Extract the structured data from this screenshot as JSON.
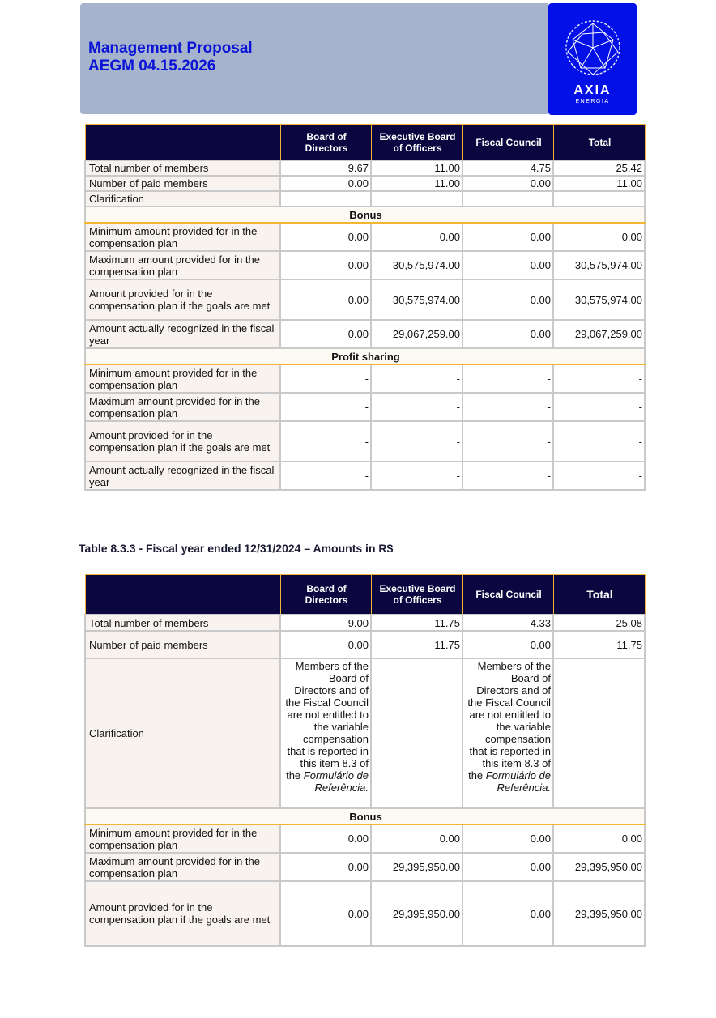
{
  "header": {
    "title": [
      "Management Proposal",
      "AEGM 04.15.2026"
    ],
    "logo": {
      "name": "AXIA",
      "subtitle": "ENERGIA"
    }
  },
  "tables": [
    {
      "columns": [
        "Board of Directors",
        "Executive Board of Officers",
        "Fiscal Council",
        "Total"
      ],
      "rows": [
        {
          "label": "Total number of members",
          "cells": [
            "9.67",
            "11.00",
            "4.75",
            "25.42"
          ]
        },
        {
          "label": "Number of paid members",
          "cells": [
            "0.00",
            "11.00",
            "0.00",
            "11.00"
          ]
        },
        {
          "label": "Clarification",
          "cells": [
            null,
            null,
            null,
            null
          ]
        },
        {
          "section": "Bonus"
        },
        {
          "label": "Minimum amount provided for in the compensation plan",
          "cells": [
            "0.00",
            "0.00",
            "0.00",
            "0.00"
          ]
        },
        {
          "label": "Maximum amount provided for in the compensation plan",
          "cells": [
            "0.00",
            "30,575,974.00",
            "0.00",
            "30,575,974.00"
          ]
        },
        {
          "label": "Amount provided for in the compensation plan if the goals are met",
          "cells": [
            "0.00",
            "30,575,974.00",
            "0.00",
            "30,575,974.00"
          ]
        },
        {
          "label": "Amount actually recognized in the fiscal year",
          "cells": [
            "0.00",
            "29,067,259.00",
            "0.00",
            "29,067,259.00"
          ]
        },
        {
          "section": "Profit sharing"
        },
        {
          "label": "Minimum amount provided for in the compensation plan",
          "cells": [
            "-",
            "-",
            "-",
            "-"
          ]
        },
        {
          "label": "Maximum amount provided for in the compensation plan",
          "cells": [
            "-",
            "-",
            "-",
            "-"
          ]
        },
        {
          "label": "Amount provided for in the compensation plan if the goals are met",
          "cells": [
            "-",
            "-",
            "-",
            "-"
          ]
        },
        {
          "label": "Amount actually recognized in the fiscal year",
          "cells": [
            "-",
            "-",
            "-",
            "-"
          ]
        }
      ]
    },
    {
      "caption": "Table 8.3.3 - Fiscal year ended 12/31/2024 – Amounts in R$",
      "columns": [
        "Board of Directors",
        "Executive Board of Officers",
        "Fiscal Council",
        "Total"
      ],
      "rows": [
        {
          "label": "Total number of members",
          "cells": [
            "9.00",
            "11.75",
            "4.33",
            "25.08"
          ]
        },
        {
          "label": "Number of paid members",
          "cells": [
            "0.00",
            "11.75",
            "0.00",
            "11.75"
          ]
        },
        {
          "label": "Clarification",
          "cells": [
            {
              "text": "Members of the Board of Directors and of the Fiscal Council are not entitled to the variable compensation that is reported in this item 8.3 of the",
              "emphasis": "Formulário de Referência."
            },
            null,
            {
              "text": "Members of the Board of Directors and of the Fiscal Council are not entitled to the variable compensation that is reported in this item 8.3 of the",
              "emphasis": "Formulário de Referência."
            },
            null
          ]
        },
        {
          "section": "Bonus"
        },
        {
          "label": "Minimum amount provided for in the compensation plan",
          "cells": [
            "0.00",
            "0.00",
            "0.00",
            "0.00"
          ]
        },
        {
          "label": "Maximum amount provided for in the compensation plan",
          "cells": [
            "0.00",
            "29,395,950.00",
            "0.00",
            "29,395,950.00"
          ]
        },
        {
          "label": "Amount provided for in the compensation plan if the goals are met",
          "cells": [
            "0.00",
            "29,395,950.00",
            "0.00",
            "29,395,950.00"
          ]
        }
      ]
    }
  ]
}
